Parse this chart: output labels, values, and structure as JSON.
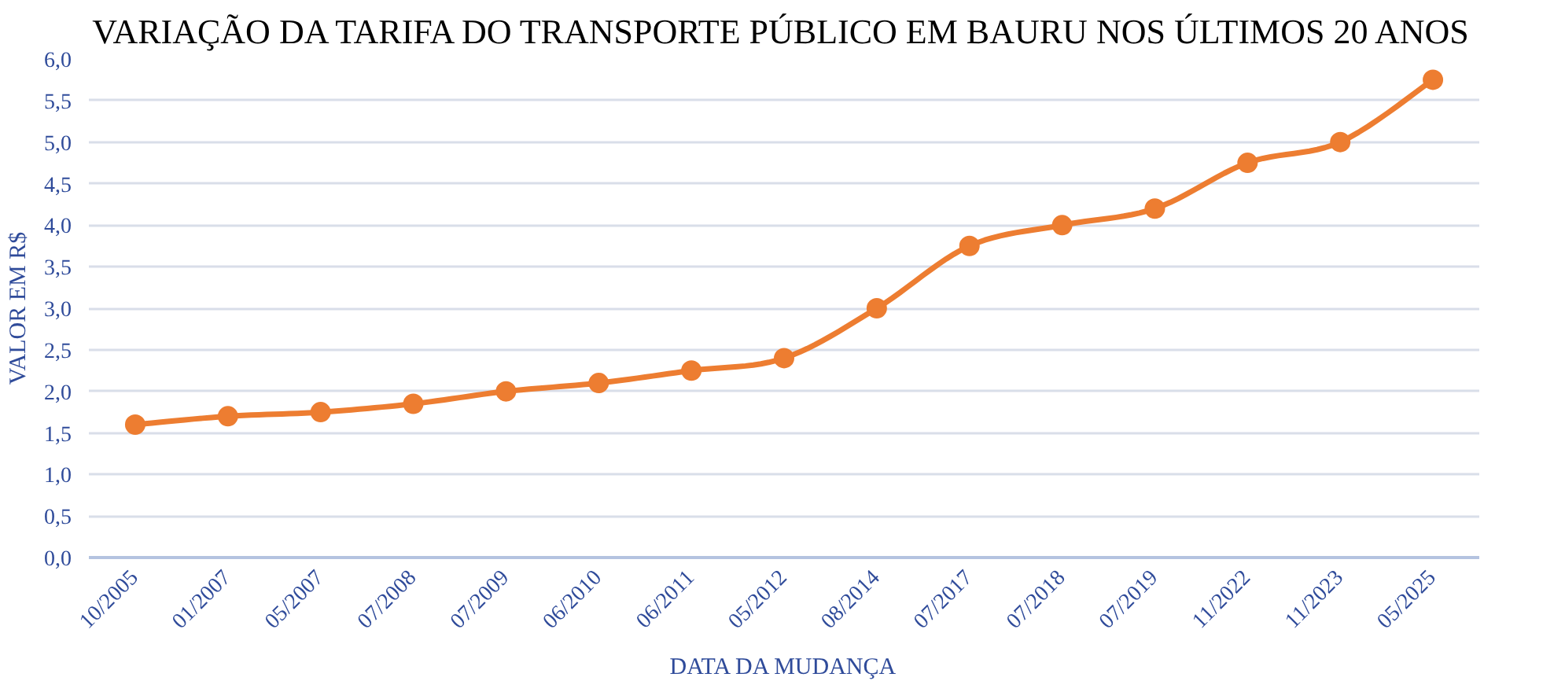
{
  "chart_data": {
    "type": "line",
    "title": "VARIAÇÃO DA TARIFA DO TRANSPORTE PÚBLICO EM BAURU NOS ÚLTIMOS 20 ANOS",
    "xlabel": "DATA DA MUDANÇA",
    "ylabel": "VALOR EM R$",
    "categories": [
      "10/2005",
      "01/2007",
      "05/2007",
      "07/2008",
      "07/2009",
      "06/2010",
      "06/2011",
      "05/2012",
      "08/2014",
      "07/2017",
      "07/2018",
      "07/2019",
      "11/2022",
      "11/2023",
      "05/2025"
    ],
    "series": [
      {
        "color": "#ed7d31",
        "values": [
          1.6,
          1.7,
          1.75,
          1.85,
          2.0,
          2.1,
          2.25,
          2.4,
          3.0,
          3.75,
          4.0,
          4.2,
          4.75,
          5.0,
          5.75
        ]
      }
    ],
    "ylim": [
      0,
      6
    ],
    "yticks": [
      {
        "value": 0,
        "label": "0,0"
      },
      {
        "value": 0.5,
        "label": "0,5"
      },
      {
        "value": 1,
        "label": "1,0"
      },
      {
        "value": 1.5,
        "label": "1,5"
      },
      {
        "value": 2,
        "label": "2,0"
      },
      {
        "value": 2.5,
        "label": "2,5"
      },
      {
        "value": 3,
        "label": "3,0"
      },
      {
        "value": 3.5,
        "label": "3,5"
      },
      {
        "value": 4,
        "label": "4,0"
      },
      {
        "value": 4.5,
        "label": "4,5"
      },
      {
        "value": 5,
        "label": "5,0"
      },
      {
        "value": 5.5,
        "label": "5,5"
      },
      {
        "value": 6,
        "label": "6,0"
      }
    ],
    "grid": "y",
    "marker": "circle",
    "line_style": "solid"
  }
}
